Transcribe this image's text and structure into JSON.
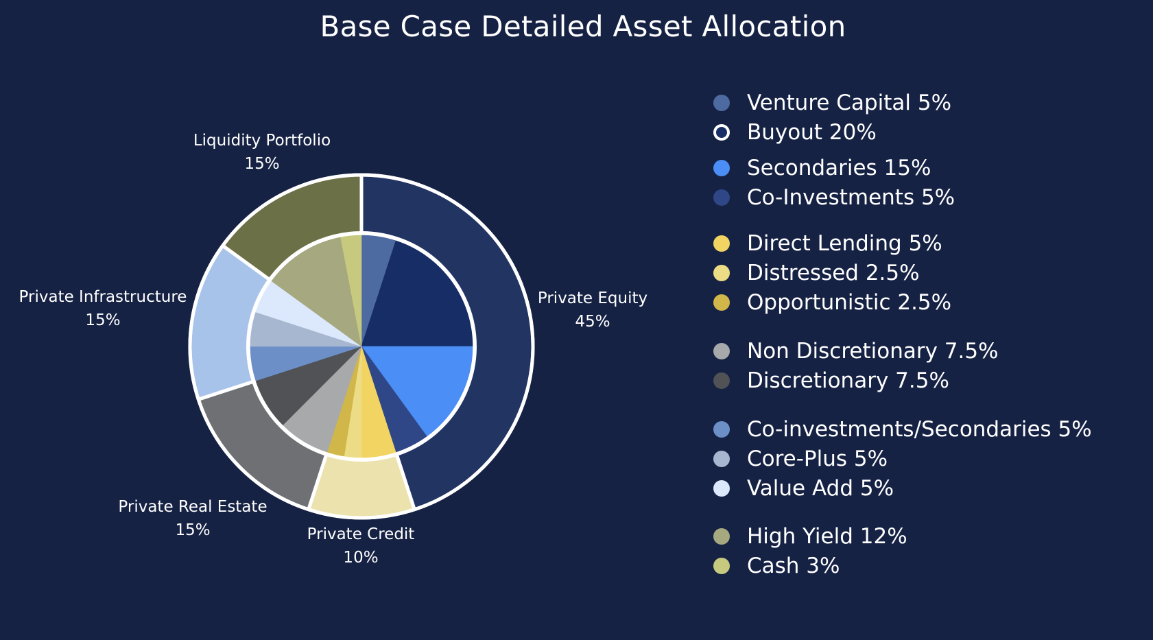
{
  "title": "Base Case Detailed Asset Allocation",
  "chart_data": {
    "type": "pie",
    "subtype": "nested-pie",
    "title": "Base Case Detailed Asset Allocation",
    "outer_ring": [
      {
        "name": "Private Equity",
        "value": 45,
        "label_value": "45%",
        "color": "#223462"
      },
      {
        "name": "Private Credit",
        "value": 10,
        "label_value": "10%",
        "color": "#ebe2ae"
      },
      {
        "name": "Private Real Estate",
        "value": 15,
        "label_value": "15%",
        "color": "#6e7074"
      },
      {
        "name": "Private Infrastructure",
        "value": 15,
        "label_value": "15%",
        "color": "#a7c3ea"
      },
      {
        "name": "Liquidity Portfolio",
        "value": 15,
        "label_value": "15%",
        "color": "#6c7047"
      }
    ],
    "inner_pie": [
      {
        "name": "Venture Capital",
        "value": 5,
        "label": "Venture Capital 5%",
        "color": "#4e6ba1"
      },
      {
        "name": "Buyout",
        "value": 20,
        "label": "Buyout 20%",
        "color": "#172d66"
      },
      {
        "name": "Secondaries",
        "value": 15,
        "label": "Secondaries 15%",
        "color": "#4b8ef6"
      },
      {
        "name": "Co-Investments",
        "value": 5,
        "label": "Co-Investments 5%",
        "color": "#2f4787"
      },
      {
        "name": "Direct Lending",
        "value": 5,
        "label": "Direct Lending 5%",
        "color": "#f2d462"
      },
      {
        "name": "Distressed",
        "value": 2.5,
        "label": "Distressed 2.5%",
        "color": "#eddc86"
      },
      {
        "name": "Opportunistic",
        "value": 2.5,
        "label": "Opportunistic 2.5%",
        "color": "#d1b74a"
      },
      {
        "name": "Non Discretionary",
        "value": 7.5,
        "label": "Non Discretionary 7.5%",
        "color": "#a8a9ab"
      },
      {
        "name": "Discretionary",
        "value": 7.5,
        "label": "Discretionary 7.5%",
        "color": "#515255"
      },
      {
        "name": "Co-investments/Secondaries",
        "value": 5,
        "label": "Co-investments/Secondaries 5%",
        "color": "#6d8fc8"
      },
      {
        "name": "Core-Plus",
        "value": 5,
        "label": "Core-Plus 5%",
        "color": "#a8b7d0"
      },
      {
        "name": "Value Add",
        "value": 5,
        "label": "Value Add 5%",
        "color": "#dce8fb"
      },
      {
        "name": "High Yield",
        "value": 12,
        "label": "High Yield 12%",
        "color": "#a6a87f"
      },
      {
        "name": "Cash",
        "value": 3,
        "label": "Cash 3%",
        "color": "#c7ca7e"
      }
    ],
    "legend": {
      "position": "right",
      "groups": [
        [
          "Venture Capital 5%",
          "Buyout 20%",
          "Secondaries 15%",
          "Co-Investments 5%"
        ],
        [
          "Direct Lending 5%",
          "Distressed 2.5%",
          "Opportunistic 2.5%"
        ],
        [
          "Non Discretionary 7.5%",
          "Discretionary 7.5%"
        ],
        [
          "Co-investments/Secondaries 5%",
          "Core-Plus 5%",
          "Value Add 5%"
        ],
        [
          "High Yield 12%",
          "Cash 3%"
        ]
      ]
    }
  }
}
